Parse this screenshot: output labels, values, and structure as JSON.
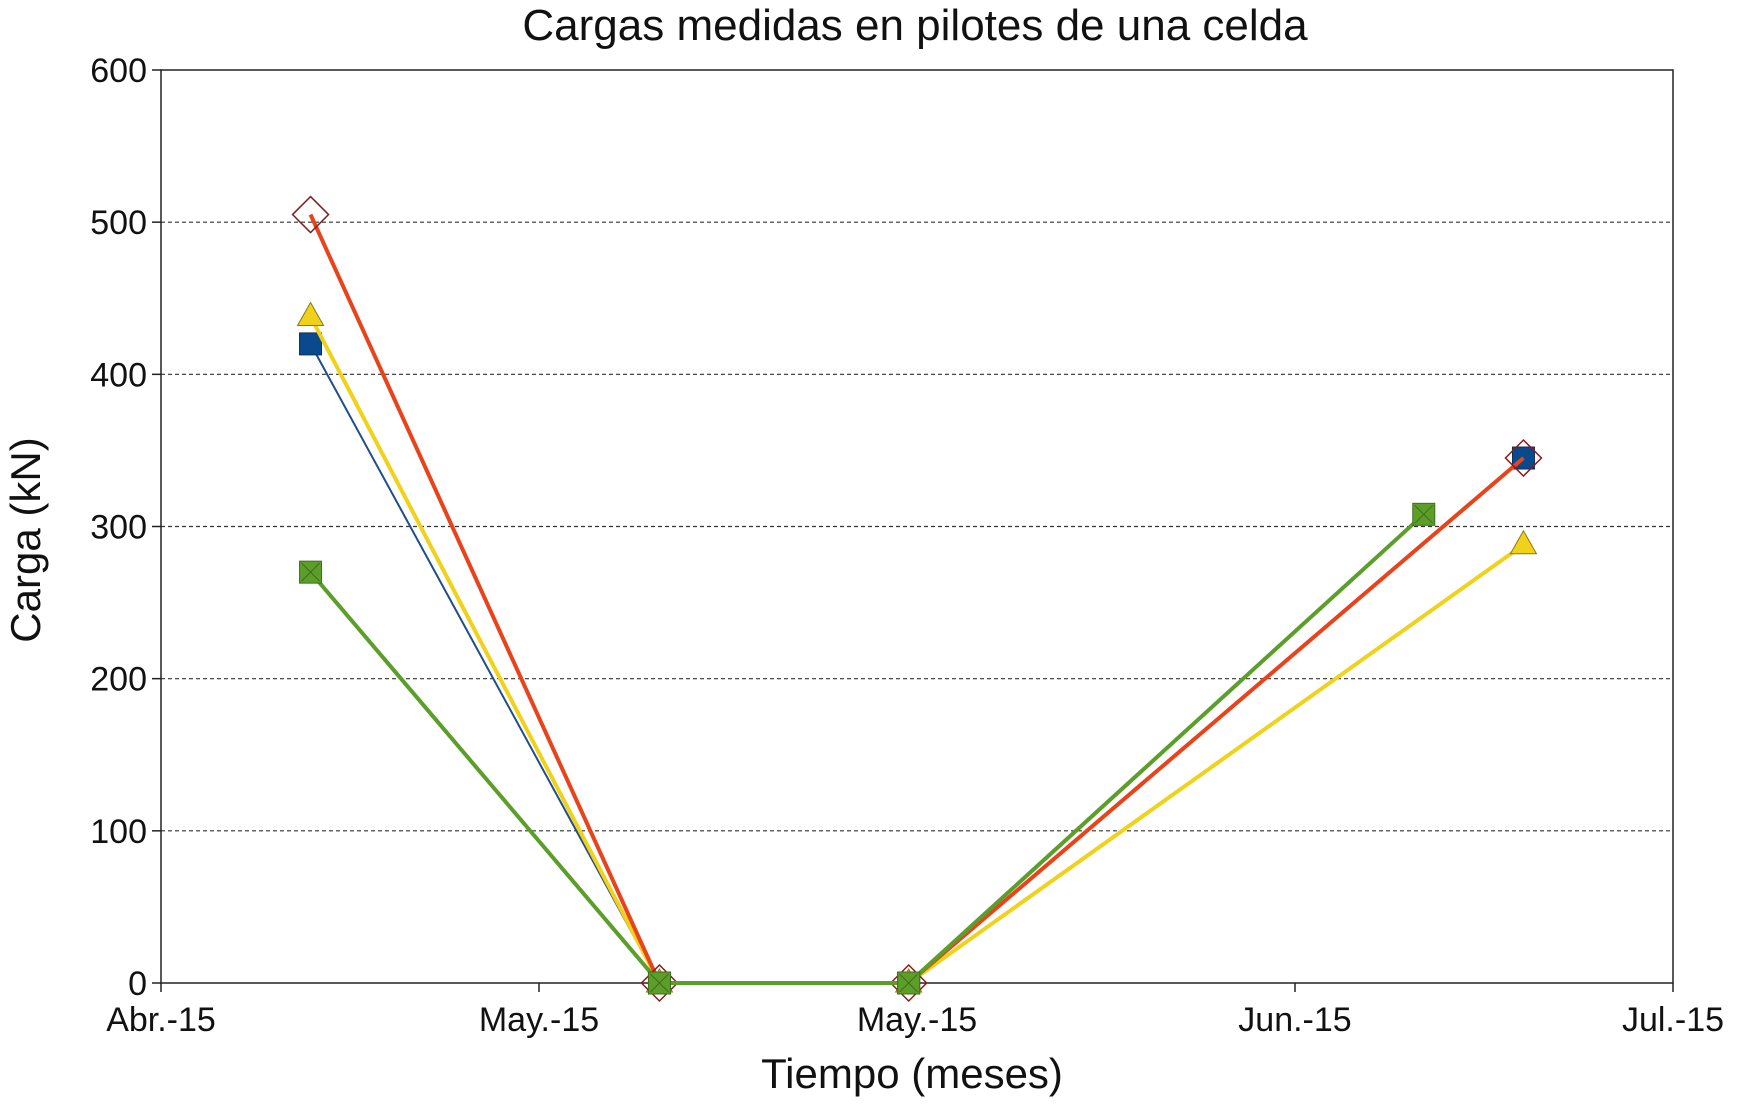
{
  "chart_data": {
    "type": "line",
    "title": "Cargas medidas en pilotes de una celda",
    "xlabel": "Tiempo (meses)",
    "ylabel": "Carga (kN)",
    "x_ticks": [
      "Abr.-15",
      "May.-15",
      "May.-15",
      "Jun.-15",
      "Jul.-15"
    ],
    "y_ticks": [
      "0",
      "100",
      "200",
      "300",
      "400",
      "500",
      "600"
    ],
    "ylim": [
      0,
      600
    ],
    "grid": "horizontal dashed",
    "series": [
      {
        "marker": "square",
        "color": "#1f4e8c",
        "marker_color": "#0a4a8c",
        "points": [
          {
            "x": "2015-04-10",
            "y": 420
          },
          {
            "x": "2015-05-01",
            "y": 0
          },
          {
            "x": "2015-05-16",
            "y": 0
          },
          {
            "x": "2015-06-22",
            "y": 345
          }
        ]
      },
      {
        "marker": "triangle",
        "color": "#f0d21a",
        "marker_color": "#f0d21a",
        "points": [
          {
            "x": "2015-04-10",
            "y": 438
          },
          {
            "x": "2015-05-01",
            "y": 0
          },
          {
            "x": "2015-05-16",
            "y": 0
          },
          {
            "x": "2015-06-22",
            "y": 288
          }
        ]
      },
      {
        "marker": "diamond",
        "color": "#e8431a",
        "marker_color": "#8b1a1a",
        "points": [
          {
            "x": "2015-04-10",
            "y": 505
          },
          {
            "x": "2015-05-01",
            "y": 0
          },
          {
            "x": "2015-05-16",
            "y": 0
          },
          {
            "x": "2015-06-22",
            "y": 345
          }
        ]
      },
      {
        "marker": "square-x",
        "color": "#5c9e2a",
        "marker_color": "#5c9e2a",
        "points": [
          {
            "x": "2015-04-10",
            "y": 270
          },
          {
            "x": "2015-05-01",
            "y": 0
          },
          {
            "x": "2015-05-16",
            "y": 0
          },
          {
            "x": "2015-06-16",
            "y": 308
          }
        ]
      }
    ]
  }
}
